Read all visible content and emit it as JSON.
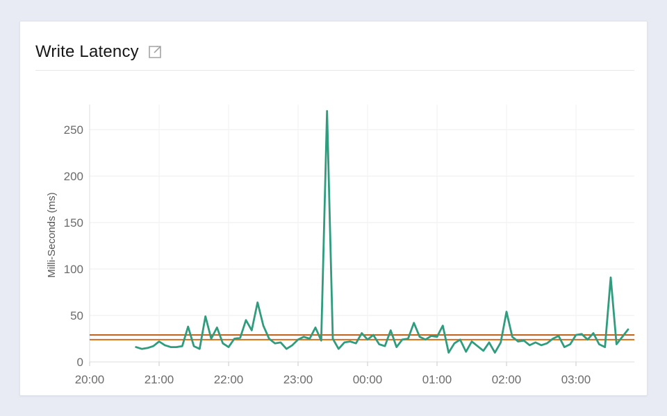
{
  "header": {
    "title": "Write Latency",
    "icon": "external-link"
  },
  "chart_data": {
    "type": "line",
    "title": "Write Latency",
    "xlabel": "",
    "ylabel": "Milli-Seconds (ms)",
    "y_ticks": [
      0,
      50,
      100,
      150,
      200,
      250
    ],
    "x_ticks": [
      "20:00",
      "21:00",
      "22:00",
      "23:00",
      "00:00",
      "01:00",
      "02:00",
      "03:00"
    ],
    "ylim": [
      0,
      285
    ],
    "x_start": "20:00",
    "x_end": "03:49",
    "grid": true,
    "legend": "none",
    "line_color": "#2f9c7e",
    "threshold_lines": [
      {
        "name": "upper-threshold",
        "value": 29,
        "color": "#c25c10"
      },
      {
        "name": "lower-threshold",
        "value": 24,
        "color": "#d96d1a"
      }
    ],
    "series": [
      {
        "name": "write-latency-ms",
        "color": "#2f9c7e",
        "times": [
          "20:40",
          "20:45",
          "20:50",
          "20:55",
          "21:00",
          "21:05",
          "21:10",
          "21:15",
          "21:20",
          "21:25",
          "21:30",
          "21:35",
          "21:40",
          "21:45",
          "21:50",
          "21:55",
          "22:00",
          "22:05",
          "22:10",
          "22:15",
          "22:20",
          "22:25",
          "22:30",
          "22:35",
          "22:40",
          "22:45",
          "22:50",
          "22:55",
          "23:00",
          "23:05",
          "23:10",
          "23:15",
          "23:20",
          "23:25",
          "23:30",
          "23:35",
          "23:40",
          "23:45",
          "23:50",
          "23:55",
          "00:00",
          "00:05",
          "00:10",
          "00:15",
          "00:20",
          "00:25",
          "00:30",
          "00:35",
          "00:40",
          "00:45",
          "00:50",
          "00:55",
          "01:00",
          "01:05",
          "01:10",
          "01:15",
          "01:20",
          "01:25",
          "01:30",
          "01:35",
          "01:40",
          "01:45",
          "01:50",
          "01:55",
          "02:00",
          "02:05",
          "02:10",
          "02:15",
          "02:20",
          "02:25",
          "02:30",
          "02:35",
          "02:40",
          "02:45",
          "02:50",
          "02:55",
          "03:00",
          "03:05",
          "03:10",
          "03:15",
          "03:20",
          "03:25",
          "03:30",
          "03:35",
          "03:40",
          "03:45"
        ],
        "values": [
          16,
          14,
          15,
          17,
          22,
          18,
          16,
          16,
          17,
          38,
          17,
          14,
          49,
          25,
          37,
          20,
          16,
          25,
          26,
          45,
          34,
          64,
          39,
          25,
          20,
          21,
          14,
          18,
          24,
          27,
          25,
          37,
          23,
          270,
          25,
          14,
          21,
          22,
          20,
          31,
          24,
          29,
          19,
          17,
          34,
          16,
          24,
          25,
          42,
          27,
          24,
          28,
          27,
          39,
          10,
          20,
          24,
          11,
          22,
          17,
          12,
          21,
          10,
          21,
          54,
          27,
          22,
          23,
          18,
          21,
          18,
          20,
          25,
          28,
          16,
          19,
          29,
          30,
          24,
          31,
          19,
          16,
          91,
          19,
          27,
          35
        ]
      }
    ]
  }
}
